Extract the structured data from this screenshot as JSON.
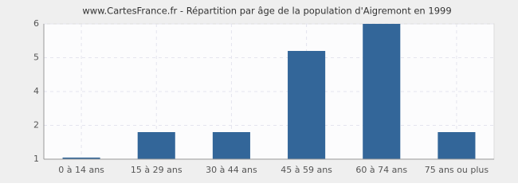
{
  "chart_data": {
    "type": "bar",
    "title": "www.CartesFrance.fr - Répartition par âge de la population d'Aigremont en 1999",
    "categories": [
      "0 à 14 ans",
      "15 à 29 ans",
      "30 à 44 ans",
      "45 à 59 ans",
      "60 à 74 ans",
      "75 ans ou plus"
    ],
    "values": [
      1,
      2,
      2,
      5,
      6,
      2
    ],
    "color": "#336699",
    "ylim": [
      1,
      6
    ],
    "yticks": [
      1,
      {
        "value": 2.25,
        "label": "2"
      },
      {
        "value": 3.5,
        "label": "4"
      },
      {
        "value": 4.75,
        "label": "5"
      },
      6
    ],
    "grid": true
  }
}
